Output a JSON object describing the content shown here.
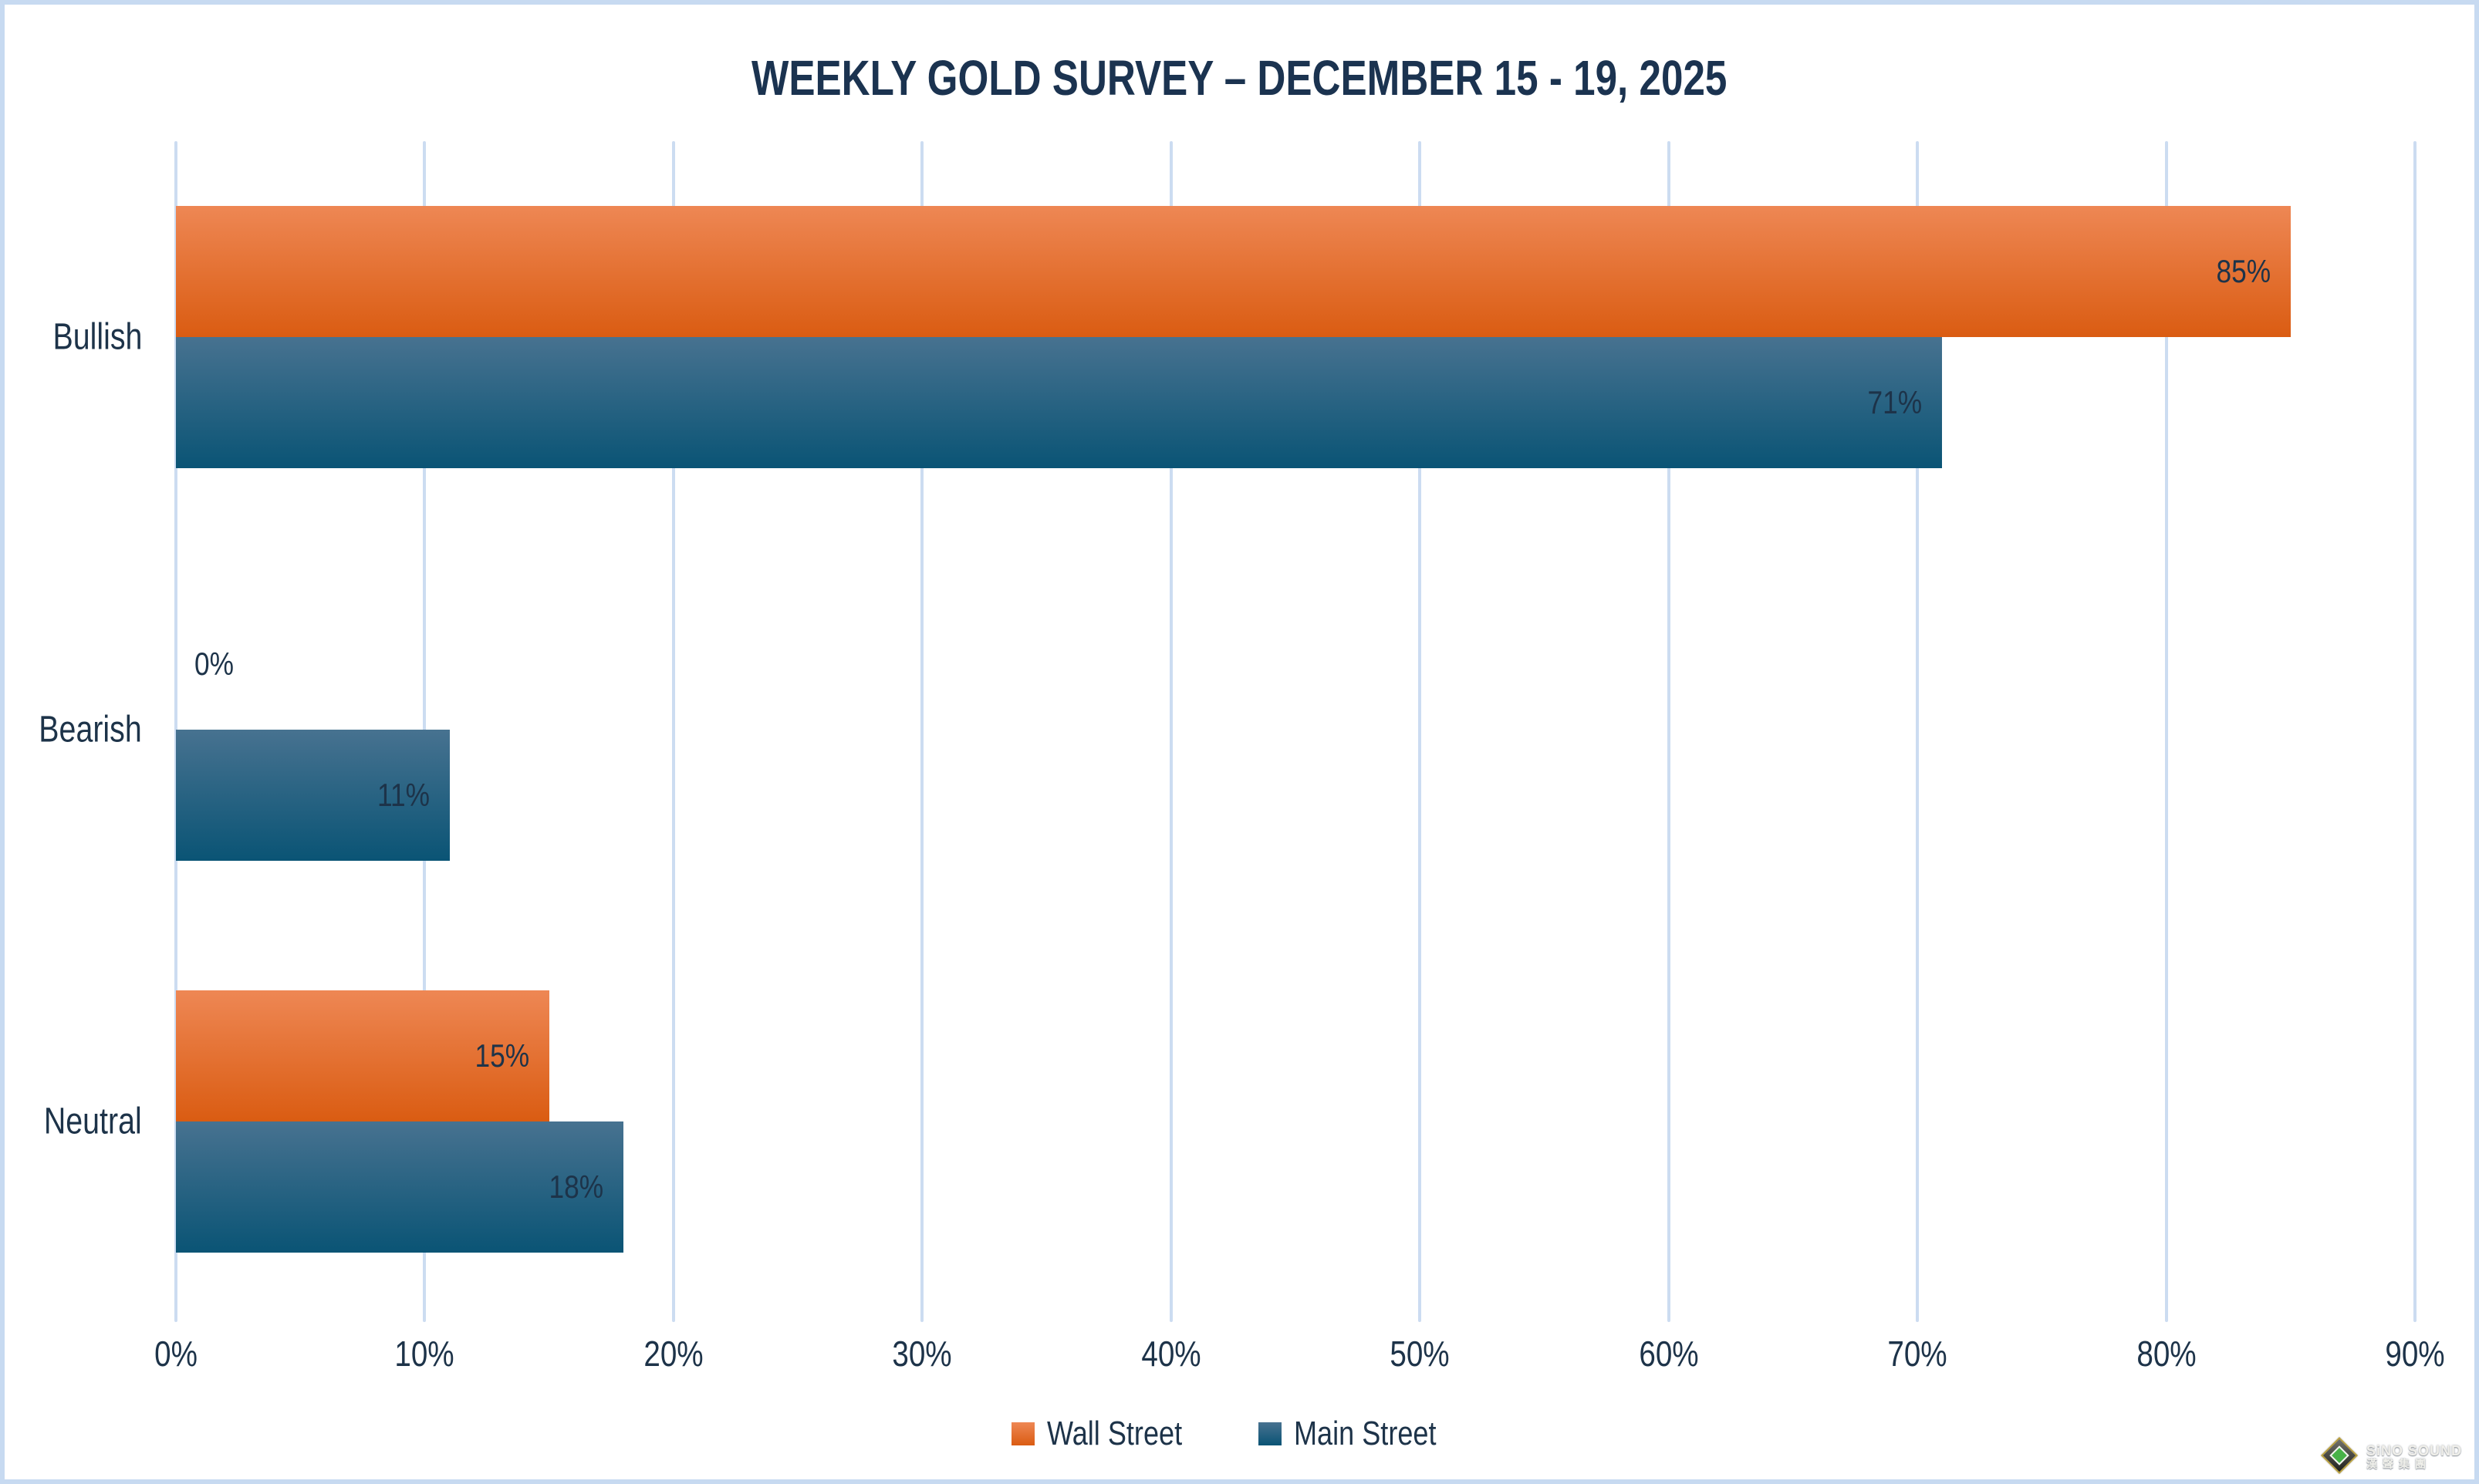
{
  "title": "WEEKLY GOLD SURVEY – DECEMBER 15 - 19, 2025",
  "chart_data": {
    "type": "bar",
    "orientation": "horizontal",
    "title": "WEEKLY GOLD SURVEY – DECEMBER 15 - 19, 2025",
    "categories": [
      "Bullish",
      "Bearish",
      "Neutral"
    ],
    "series": [
      {
        "name": "Wall Street",
        "values": [
          85,
          0,
          15
        ],
        "labels": [
          "85%",
          "0%",
          "15%"
        ],
        "color": "#ED7D31",
        "gradient_top": "#EE8754",
        "gradient_bottom": "#DA5C12"
      },
      {
        "name": "Main Street",
        "values": [
          71,
          11,
          18
        ],
        "labels": [
          "71%",
          "11%",
          "18%"
        ],
        "color": "#2E6E8E",
        "gradient_top": "#477290",
        "gradient_bottom": "#0A5475"
      }
    ],
    "xlim": [
      0,
      90
    ],
    "x_ticks": [
      "0%",
      "10%",
      "20%",
      "30%",
      "40%",
      "50%",
      "60%",
      "70%",
      "80%",
      "90%"
    ],
    "grid": true,
    "gridline_color": "#CCDCF1",
    "legend_position": "bottom",
    "value_label_color": "#1D3349"
  },
  "watermark": {
    "brand": "SiNO SOUND",
    "brand_cjk": "漢聲集團"
  },
  "colors": {
    "text": "#1D3349",
    "title_text": "#1B3350",
    "frame_border": "#C7DAF1",
    "background": "#FFFFFF"
  }
}
